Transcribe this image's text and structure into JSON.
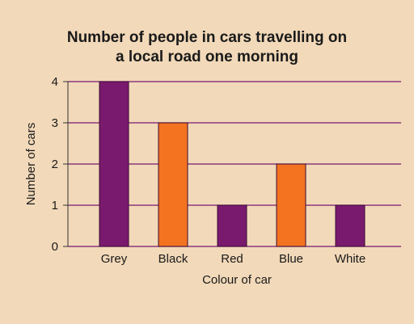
{
  "chart_data": {
    "type": "bar",
    "title_lines": [
      "Number of people in cars travelling on",
      "a local road one morning"
    ],
    "xlabel": "Colour of car",
    "ylabel": "Number of cars",
    "categories": [
      "Grey",
      "Black",
      "Red",
      "Blue",
      "White"
    ],
    "values": [
      4,
      3,
      1,
      2,
      1
    ],
    "bar_colors": [
      "#7a1a6e",
      "#f47320",
      "#7a1a6e",
      "#f47320",
      "#7a1a6e"
    ],
    "ylim": [
      0,
      4
    ],
    "yticks": [
      0,
      1,
      2,
      3,
      4
    ],
    "grid": true,
    "grid_color": "#7a1a6e",
    "bar_outline": "#3a0a33"
  }
}
